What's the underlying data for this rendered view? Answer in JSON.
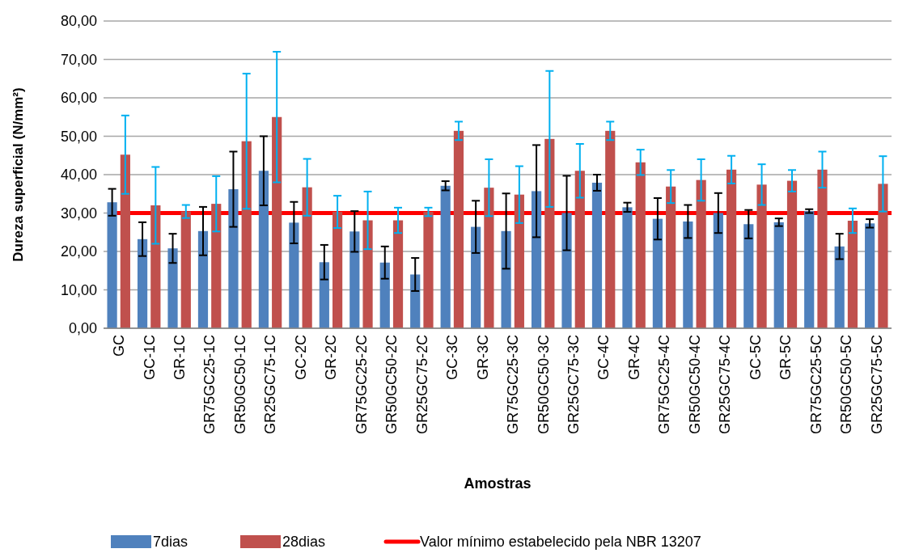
{
  "chart_data": {
    "type": "bar",
    "xlabel": "Amostras",
    "ylabel": "Dureza superficial (N/mm²)",
    "categories": [
      "GC",
      "GC-1C",
      "GR-1C",
      "GR75GC25-1C",
      "GR50GC50-1C",
      "GR25GC75-1C",
      "GC-2C",
      "GR-2C",
      "GR75GC25-2C",
      "GR50GC50-2C",
      "GR25GC75-2C",
      "GC-3C",
      "GR-3C",
      "GR75GC25-3C",
      "GR50GC50-3C",
      "GR25GC75-3C",
      "GC-4C",
      "GR-4C",
      "GR75GC25-4C",
      "GR50GC50-4C",
      "GR25GC75-4C",
      "GC-5C",
      "GR-5C",
      "GR75GC25-5C",
      "GR50GC50-5C",
      "GR25GC75-5C"
    ],
    "series": [
      {
        "name": "7dias",
        "color": "#4f81bd",
        "values": [
          32.8,
          23.2,
          20.8,
          25.3,
          36.2,
          41.0,
          27.5,
          17.2,
          25.2,
          17.1,
          14.0,
          37.1,
          26.4,
          25.3,
          35.7,
          30.0,
          37.9,
          31.5,
          28.5,
          27.8,
          30.0,
          27.1,
          27.6,
          30.5,
          21.3,
          27.3
        ],
        "errors": [
          3.5,
          4.4,
          3.8,
          6.3,
          9.8,
          9.0,
          5.4,
          4.5,
          5.3,
          4.2,
          4.3,
          1.2,
          6.8,
          9.8,
          12.0,
          9.7,
          2.1,
          1.2,
          5.4,
          4.3,
          5.2,
          3.7,
          1.0,
          0.5,
          3.3,
          1.1
        ]
      },
      {
        "name": "28dias",
        "color": "#c0504d",
        "values": [
          45.2,
          32.0,
          30.4,
          32.4,
          48.7,
          55.0,
          36.7,
          30.3,
          28.1,
          28.1,
          30.3,
          51.4,
          36.6,
          34.8,
          49.3,
          41.0,
          51.4,
          43.2,
          36.9,
          38.6,
          41.3,
          37.4,
          38.4,
          41.3,
          28.0,
          37.6
        ],
        "errors": [
          10.2,
          10.0,
          1.7,
          7.2,
          17.6,
          17.0,
          7.4,
          4.2,
          7.5,
          3.3,
          1.1,
          2.4,
          7.4,
          7.4,
          17.7,
          7.0,
          2.4,
          3.3,
          4.3,
          5.4,
          3.6,
          5.3,
          2.8,
          4.7,
          3.2,
          7.2
        ]
      }
    ],
    "ylim": [
      0,
      80
    ],
    "yticks": [
      {
        "value": 0,
        "label": "0,00"
      },
      {
        "value": 10,
        "label": "10,00"
      },
      {
        "value": 20,
        "label": "20,00"
      },
      {
        "value": 30,
        "label": "30,00"
      },
      {
        "value": 40,
        "label": "40,00"
      },
      {
        "value": 50,
        "label": "50,00"
      },
      {
        "value": 60,
        "label": "60,00"
      },
      {
        "value": 70,
        "label": "70,00"
      },
      {
        "value": 80,
        "label": "80,00"
      }
    ],
    "grid": "y",
    "legend": "bottom",
    "ref_lines": [
      {
        "axis": "y",
        "value": 30,
        "label": "Valor mínimo estabelecido pela NBR 13207",
        "color": "#ff0000"
      }
    ]
  }
}
